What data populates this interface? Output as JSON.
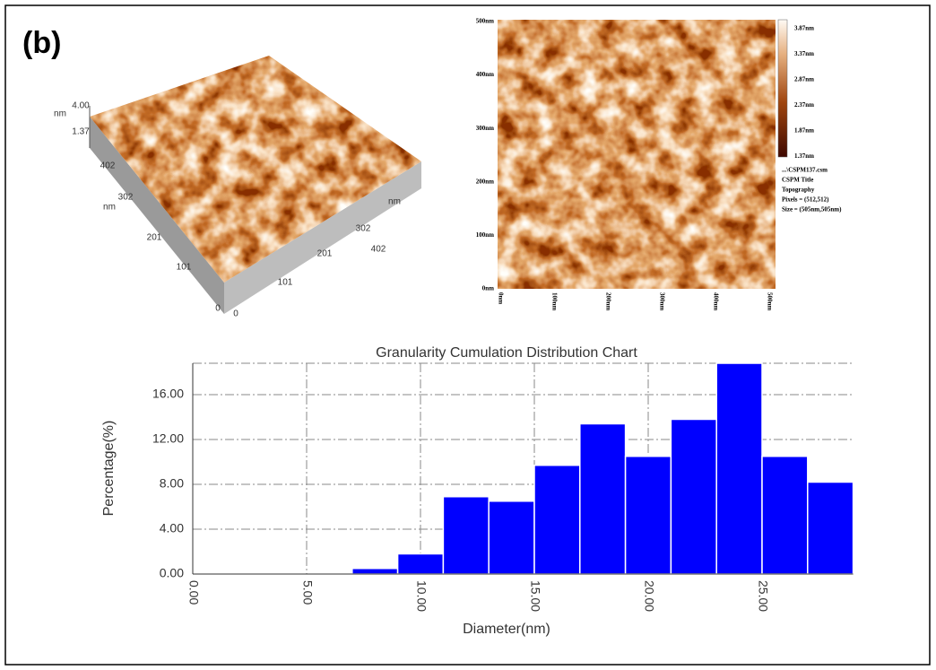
{
  "panel_label": "(b)",
  "afm_3d": {
    "labels": [
      "nm",
      "4.00",
      "1.37",
      "402",
      "302",
      "nm",
      "201",
      "101",
      "0",
      "0",
      "101",
      "201",
      "302",
      "402",
      "nm"
    ]
  },
  "afm_2d": {
    "y_labels": [
      "500nm",
      "400nm",
      "300nm",
      "200nm",
      "100nm",
      "0nm"
    ],
    "x_labels": [
      "0nm",
      "100nm",
      "200nm",
      "300nm",
      "400nm",
      "500nm"
    ],
    "colorbar_labels": [
      "3.87nm",
      "3.37nm",
      "2.87nm",
      "2.37nm",
      "1.87nm",
      "1.37nm"
    ],
    "info": [
      "...\\CSPM137.csm",
      "CSPM Title",
      "Topography",
      "Pixels = (512,512)",
      "Size = (505nm,505nm)"
    ]
  },
  "chart_data": {
    "type": "histogram",
    "title": "Granularity Cumulation Distribution  Chart",
    "x_label": "Diameter(nm)",
    "y_label": "Percentage(%)",
    "bins": [
      7,
      9,
      11,
      13,
      15,
      17,
      19,
      21,
      23,
      25,
      27,
      29
    ],
    "values": [
      0.5,
      1.8,
      6.9,
      6.5,
      9.7,
      13.4,
      10.5,
      13.8,
      18.8,
      10.5,
      8.2
    ],
    "color": "#0000ff",
    "xlim": [
      0,
      29
    ],
    "ylim": [
      0,
      18.8
    ],
    "xticks": [
      {
        "value": 0,
        "label": "0.00"
      },
      {
        "value": 5,
        "label": "5.00"
      },
      {
        "value": 10,
        "label": "10.00"
      },
      {
        "value": 15,
        "label": "15.00"
      },
      {
        "value": 20,
        "label": "20.00"
      },
      {
        "value": 25,
        "label": "25.00"
      }
    ],
    "yticks": [
      {
        "value": 0,
        "label": "0.00"
      },
      {
        "value": 4,
        "label": "4.00"
      },
      {
        "value": 8,
        "label": "8.00"
      },
      {
        "value": 12,
        "label": "12.00"
      },
      {
        "value": 16,
        "label": "16.00"
      }
    ],
    "grid": true
  }
}
